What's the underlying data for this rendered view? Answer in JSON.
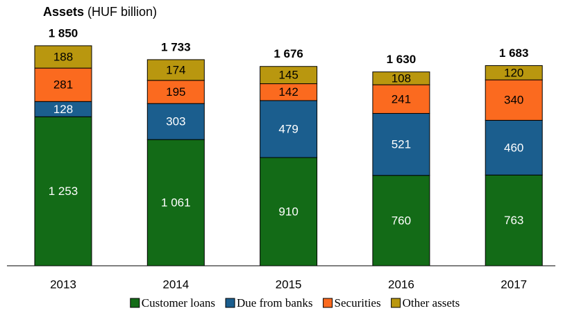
{
  "chart_data": {
    "type": "stacked_bar",
    "title": "Assets",
    "subtitle": "(HUF billion)",
    "categories": [
      "2013",
      "2014",
      "2015",
      "2016",
      "2017"
    ],
    "series": [
      {
        "name": "Customer loans",
        "color": "#136b17",
        "values": [
          1253,
          1061,
          910,
          760,
          763
        ],
        "value_labels": [
          "1 253",
          "1 061",
          "910",
          "760",
          "763"
        ]
      },
      {
        "name": "Due from banks",
        "color": "#1b5e8e",
        "values": [
          128,
          303,
          479,
          521,
          460
        ]
      },
      {
        "name": "Securities",
        "color": "#fb6a1f",
        "values": [
          281,
          195,
          142,
          241,
          340
        ]
      },
      {
        "name": "Other assets",
        "color": "#b9970f",
        "values": [
          188,
          174,
          145,
          108,
          120
        ]
      }
    ],
    "totals": [
      1850,
      1733,
      1676,
      1630,
      1683
    ],
    "total_labels": [
      "1 850",
      "1 733",
      "1 676",
      "1 630",
      "1 683"
    ],
    "ylim": [
      0,
      2200
    ]
  }
}
